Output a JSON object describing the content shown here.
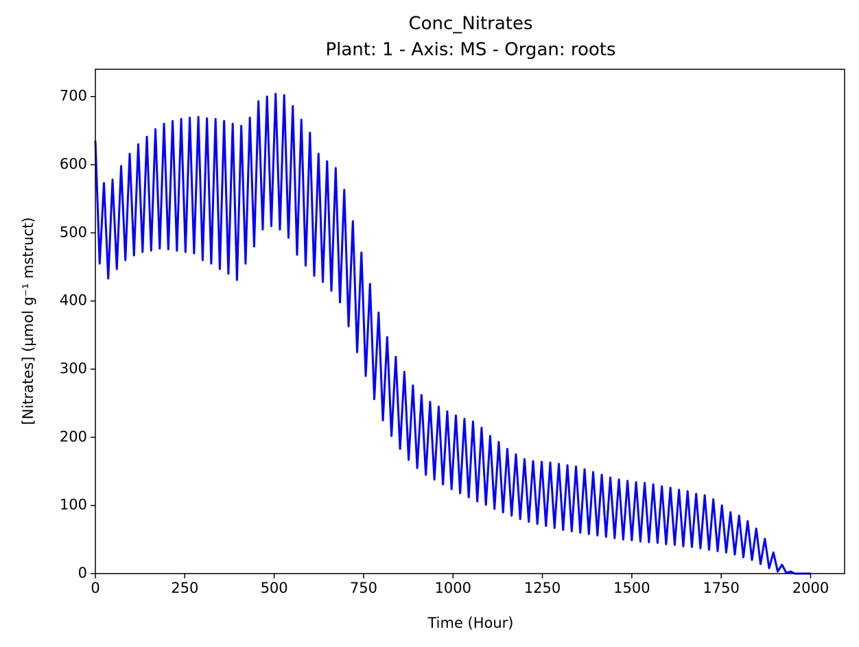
{
  "chart_data": {
    "type": "line",
    "title": "Conc_Nitrates",
    "subtitle": "Plant: 1 - Axis: MS - Organ: roots",
    "x_label": "Time (Hour)",
    "y_label": "[Nitrates] (µmol g⁻¹ mstruct)",
    "xlim": [
      0,
      2095
    ],
    "ylim": [
      0,
      740
    ],
    "xticks": [
      0,
      250,
      500,
      750,
      1000,
      1250,
      1500,
      1750,
      2000
    ],
    "yticks": [
      0,
      100,
      200,
      300,
      400,
      500,
      600,
      700
    ],
    "grid": false,
    "x": [
      0,
      12,
      24,
      36,
      48,
      60,
      72,
      84,
      96,
      108,
      120,
      132,
      144,
      156,
      168,
      180,
      192,
      204,
      216,
      228,
      240,
      252,
      264,
      276,
      288,
      300,
      312,
      324,
      336,
      348,
      360,
      372,
      384,
      396,
      408,
      420,
      432,
      444,
      456,
      468,
      480,
      492,
      504,
      516,
      528,
      540,
      552,
      564,
      576,
      588,
      600,
      612,
      624,
      636,
      648,
      660,
      672,
      684,
      696,
      708,
      720,
      732,
      744,
      756,
      768,
      780,
      792,
      804,
      816,
      828,
      840,
      852,
      864,
      876,
      888,
      900,
      912,
      924,
      936,
      948,
      960,
      972,
      984,
      996,
      1008,
      1020,
      1032,
      1044,
      1056,
      1068,
      1080,
      1092,
      1104,
      1116,
      1128,
      1140,
      1152,
      1164,
      1176,
      1188,
      1200,
      1212,
      1224,
      1236,
      1248,
      1260,
      1272,
      1284,
      1296,
      1308,
      1320,
      1332,
      1344,
      1356,
      1368,
      1380,
      1392,
      1404,
      1416,
      1428,
      1440,
      1452,
      1464,
      1476,
      1488,
      1500,
      1512,
      1524,
      1536,
      1548,
      1560,
      1572,
      1584,
      1596,
      1608,
      1620,
      1632,
      1644,
      1656,
      1668,
      1680,
      1692,
      1704,
      1716,
      1728,
      1740,
      1752,
      1764,
      1776,
      1788,
      1800,
      1812,
      1824,
      1836,
      1848,
      1860,
      1872,
      1884,
      1896,
      1908,
      1920,
      1932,
      1944,
      1956,
      1968,
      2000
    ],
    "series": [
      {
        "color": "#0000ff",
        "values": [
          635,
          455,
          573,
          433,
          578,
          447,
          598,
          460,
          616,
          467,
          630,
          472,
          641,
          474,
          652,
          477,
          660,
          476,
          664,
          474,
          667,
          472,
          669,
          470,
          670,
          460,
          668,
          455,
          667,
          447,
          664,
          440,
          660,
          431,
          657,
          455,
          669,
          480,
          693,
          505,
          700,
          510,
          704,
          505,
          702,
          493,
          686,
          468,
          666,
          452,
          647,
          437,
          616,
          428,
          605,
          415,
          595,
          398,
          563,
          363,
          517,
          325,
          471,
          290,
          425,
          256,
          383,
          225,
          347,
          202,
          318,
          183,
          296,
          167,
          276,
          155,
          262,
          145,
          252,
          138,
          245,
          131,
          238,
          124,
          232,
          118,
          227,
          112,
          223,
          106,
          214,
          101,
          202,
          95,
          193,
          90,
          183,
          85,
          175,
          80,
          168,
          76,
          165,
          73,
          164,
          70,
          163,
          67,
          161,
          64,
          159,
          62,
          157,
          60,
          153,
          58,
          149,
          56,
          145,
          54,
          141,
          52,
          138,
          50,
          136,
          49,
          134,
          47,
          133,
          46,
          131,
          45,
          128,
          43,
          126,
          42,
          123,
          40,
          121,
          39,
          117,
          37,
          115,
          35,
          109,
          33,
          100,
          31,
          90,
          28,
          85,
          24,
          77,
          20,
          66,
          14,
          51,
          8,
          31,
          3,
          13,
          1,
          3,
          0,
          0,
          0
        ]
      }
    ]
  }
}
